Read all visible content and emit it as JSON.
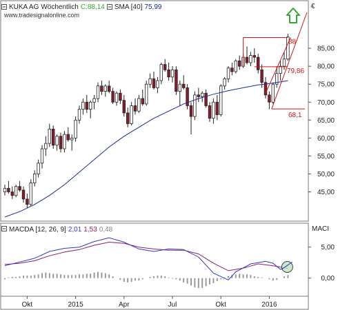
{
  "header": {
    "symbol": "KUKA AG",
    "interval": "Wöchentlich",
    "close_label": "C:88,14",
    "sma_label": "SMA [40]",
    "sma_value": "75,99",
    "url": "www.tradesignalonline.com",
    "currency": "€"
  },
  "macd_header": {
    "label": "MACDA [12, 26, 9]",
    "v1": "2,01",
    "v2": "1,53",
    "v3": "0,48",
    "axis_title": "MACI"
  },
  "colors": {
    "up": "#ffffff",
    "down": "#8b1a2b",
    "wick": "#222222",
    "sma": "#1a2a9c",
    "macd": "#2a3ad0",
    "signal": "#8a1f6a",
    "hist": "#9a9a9a",
    "trend": "#d01515",
    "arrow": "#2faa2f",
    "highlight": "#bfe3c0"
  },
  "chart_data": [
    {
      "type": "candlestick",
      "ylim": [
        38,
        95
      ],
      "yticks": [
        45,
        50,
        55,
        60,
        65,
        70,
        75,
        80,
        85
      ],
      "ytick_labels": [
        "45,00",
        "50,00",
        "55,00",
        "60,00",
        "65,00",
        "70,00",
        "75,00",
        "80,00",
        "85,00"
      ],
      "xtick_labels": [
        "Okt",
        "2015",
        "Apr",
        "Jul",
        "Okt",
        "2016"
      ],
      "xtick_index": [
        6,
        19,
        32,
        45,
        58,
        71
      ],
      "candles": [
        [
          45.0,
          47.0,
          44.0,
          46.0
        ],
        [
          46.0,
          48.0,
          44.5,
          45.0
        ],
        [
          45.0,
          46.5,
          43.0,
          44.0
        ],
        [
          44.0,
          47.0,
          43.5,
          46.5
        ],
        [
          46.5,
          48.0,
          45.0,
          45.5
        ],
        [
          45.5,
          46.5,
          42.0,
          43.0
        ],
        [
          43.0,
          44.5,
          40.5,
          41.5
        ],
        [
          41.5,
          48.5,
          41.0,
          47.5
        ],
        [
          47.5,
          51.0,
          46.5,
          50.0
        ],
        [
          50.0,
          54.0,
          49.0,
          53.0
        ],
        [
          53.0,
          58.0,
          51.5,
          57.0
        ],
        [
          57.0,
          60.5,
          55.0,
          58.5
        ],
        [
          58.5,
          64.0,
          57.5,
          62.5
        ],
        [
          62.5,
          63.5,
          57.0,
          58.0
        ],
        [
          58.0,
          61.0,
          56.5,
          60.5
        ],
        [
          60.5,
          61.5,
          56.0,
          57.0
        ],
        [
          57.0,
          62.0,
          56.0,
          61.0
        ],
        [
          61.0,
          63.0,
          59.0,
          59.5
        ],
        [
          59.5,
          61.0,
          56.5,
          60.0
        ],
        [
          60.0,
          66.0,
          59.0,
          65.0
        ],
        [
          65.0,
          69.0,
          64.0,
          68.0
        ],
        [
          68.0,
          71.0,
          66.5,
          70.0
        ],
        [
          70.0,
          72.0,
          67.0,
          68.0
        ],
        [
          68.0,
          70.5,
          65.5,
          70.0
        ],
        [
          70.0,
          72.0,
          68.0,
          71.0
        ],
        [
          71.0,
          75.5,
          70.0,
          74.5
        ],
        [
          74.5,
          76.0,
          72.0,
          73.0
        ],
        [
          73.0,
          75.0,
          71.5,
          74.5
        ],
        [
          74.5,
          76.0,
          72.5,
          73.0
        ],
        [
          73.0,
          74.0,
          69.5,
          70.0
        ],
        [
          70.0,
          73.0,
          69.0,
          72.5
        ],
        [
          72.5,
          73.5,
          69.5,
          70.5
        ],
        [
          70.5,
          72.0,
          66.0,
          67.0
        ],
        [
          67.0,
          68.5,
          63.0,
          64.0
        ],
        [
          64.0,
          70.0,
          63.5,
          69.0
        ],
        [
          69.0,
          71.0,
          66.5,
          67.5
        ],
        [
          67.5,
          72.0,
          67.0,
          71.0
        ],
        [
          71.0,
          73.5,
          69.0,
          69.5
        ],
        [
          69.5,
          76.0,
          69.0,
          75.0
        ],
        [
          75.0,
          78.0,
          74.0,
          76.5
        ],
        [
          76.5,
          78.5,
          73.5,
          74.0
        ],
        [
          74.0,
          77.0,
          72.5,
          76.0
        ],
        [
          76.0,
          81.0,
          75.0,
          80.5
        ],
        [
          80.5,
          82.0,
          78.5,
          79.0
        ],
        [
          79.0,
          81.0,
          76.0,
          77.0
        ],
        [
          77.0,
          80.0,
          75.5,
          79.0
        ],
        [
          79.0,
          80.0,
          72.0,
          73.0
        ],
        [
          73.0,
          76.0,
          69.0,
          75.0
        ],
        [
          75.0,
          77.5,
          73.5,
          74.0
        ],
        [
          74.0,
          75.0,
          68.0,
          69.0
        ],
        [
          69.0,
          70.0,
          61.0,
          66.0
        ],
        [
          66.0,
          73.0,
          65.0,
          72.0
        ],
        [
          72.0,
          74.0,
          70.0,
          71.5
        ],
        [
          71.5,
          73.0,
          70.0,
          72.5
        ],
        [
          72.5,
          73.5,
          68.5,
          69.0
        ],
        [
          69.0,
          70.0,
          64.5,
          65.5
        ],
        [
          65.5,
          71.0,
          64.0,
          70.0
        ],
        [
          70.0,
          72.0,
          65.0,
          66.5
        ],
        [
          66.5,
          75.0,
          66.0,
          74.5
        ],
        [
          74.5,
          77.0,
          73.5,
          76.5
        ],
        [
          76.5,
          80.0,
          75.5,
          79.5
        ],
        [
          79.5,
          81.0,
          77.5,
          78.5
        ],
        [
          78.5,
          82.0,
          78.0,
          81.5
        ],
        [
          81.5,
          83.0,
          79.0,
          80.0
        ],
        [
          80.0,
          83.5,
          79.5,
          82.5
        ],
        [
          82.5,
          85.5,
          80.5,
          81.0
        ],
        [
          81.0,
          84.0,
          80.0,
          83.0
        ],
        [
          83.0,
          85.0,
          81.0,
          82.5
        ],
        [
          82.5,
          83.5,
          78.0,
          79.0
        ],
        [
          79.0,
          80.5,
          74.0,
          75.5
        ],
        [
          75.5,
          77.0,
          71.0,
          72.0
        ],
        [
          72.0,
          73.0,
          68.0,
          70.0
        ],
        [
          70.0,
          75.5,
          69.5,
          75.0
        ],
        [
          75.0,
          80.0,
          74.0,
          78.0
        ],
        [
          78.0,
          81.5,
          76.0,
          80.0
        ],
        [
          80.0,
          84.0,
          79.0,
          82.0
        ],
        [
          82.0,
          89.0,
          81.5,
          88.14
        ]
      ],
      "sma": [
        [
          0,
          38.0
        ],
        [
          4,
          39.5
        ],
        [
          8,
          41.5
        ],
        [
          12,
          44.0
        ],
        [
          16,
          47.0
        ],
        [
          20,
          50.5
        ],
        [
          24,
          54.0
        ],
        [
          28,
          57.5
        ],
        [
          32,
          60.5
        ],
        [
          36,
          63.0
        ],
        [
          40,
          65.5
        ],
        [
          44,
          67.5
        ],
        [
          48,
          69.5
        ],
        [
          52,
          71.0
        ],
        [
          56,
          72.2
        ],
        [
          60,
          73.2
        ],
        [
          64,
          74.0
        ],
        [
          68,
          74.8
        ],
        [
          72,
          75.3
        ],
        [
          76,
          75.99
        ]
      ],
      "trend_levels": [
        {
          "label": "88",
          "value": 88
        },
        {
          "label": "79,86",
          "value": 79.86
        },
        {
          "label": "68,1",
          "value": 68.1
        }
      ]
    },
    {
      "type": "line+bar",
      "ylim": [
        -2.7,
        7.3
      ],
      "yticks": [
        0,
        5
      ],
      "ytick_labels": [
        "0,00",
        "5,00"
      ],
      "macd": [
        [
          0,
          2.0
        ],
        [
          4,
          2.6
        ],
        [
          8,
          3.2
        ],
        [
          12,
          4.3
        ],
        [
          16,
          4.8
        ],
        [
          20,
          5.0
        ],
        [
          24,
          5.9
        ],
        [
          28,
          6.5
        ],
        [
          32,
          5.8
        ],
        [
          36,
          4.7
        ],
        [
          40,
          4.3
        ],
        [
          44,
          4.7
        ],
        [
          48,
          4.6
        ],
        [
          52,
          3.4
        ],
        [
          56,
          0.8
        ],
        [
          60,
          -0.3
        ],
        [
          62,
          1.0
        ],
        [
          66,
          2.3
        ],
        [
          70,
          2.7
        ],
        [
          72,
          2.4
        ],
        [
          74,
          1.4
        ],
        [
          76,
          2.0
        ]
      ],
      "signal": [
        [
          0,
          2.2
        ],
        [
          4,
          2.4
        ],
        [
          8,
          2.8
        ],
        [
          12,
          3.6
        ],
        [
          16,
          4.2
        ],
        [
          20,
          4.6
        ],
        [
          24,
          5.3
        ],
        [
          28,
          5.8
        ],
        [
          32,
          5.6
        ],
        [
          36,
          5.0
        ],
        [
          40,
          4.7
        ],
        [
          44,
          4.5
        ],
        [
          48,
          4.5
        ],
        [
          52,
          3.9
        ],
        [
          56,
          2.4
        ],
        [
          60,
          1.2
        ],
        [
          64,
          1.6
        ],
        [
          68,
          2.3
        ],
        [
          72,
          2.0
        ],
        [
          76,
          1.53
        ]
      ],
      "hist_values": [
        -0.2,
        0.1,
        0.2,
        0.2,
        0.3,
        0.4,
        0.4,
        0.4,
        0.5,
        0.6,
        0.8,
        0.9,
        0.8,
        0.7,
        0.7,
        0.6,
        0.5,
        0.5,
        0.5,
        0.5,
        0.6,
        0.6,
        0.7,
        0.7,
        0.9,
        1.0,
        0.9,
        0.8,
        0.6,
        0.3,
        0.0,
        -0.3,
        -0.6,
        -0.7,
        -0.6,
        -0.4,
        -0.4,
        -0.2,
        0.0,
        0.2,
        0.3,
        0.4,
        0.4,
        0.3,
        0.1,
        -0.1,
        -0.2,
        -0.4,
        -0.7,
        -0.9,
        -1.2,
        -1.5,
        -1.6,
        -1.6,
        -1.3,
        -1.0,
        -0.8,
        -0.5,
        -0.2,
        0.1,
        0.3,
        0.5,
        0.6,
        0.7,
        0.6,
        0.6,
        0.5,
        0.3,
        0.2,
        0.1,
        0.0,
        -0.2,
        -0.4,
        -0.3,
        0.0,
        0.3,
        0.48
      ]
    }
  ]
}
